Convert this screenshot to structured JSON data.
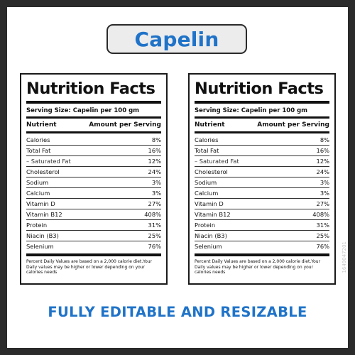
{
  "header": {
    "title": "Capelin"
  },
  "labels": [
    {
      "title": "Nutrition Facts",
      "serving_size": "Serving Size: Capelin per 100 gm",
      "col_nutrient": "Nutrient",
      "col_amount": "Amount per Serving",
      "rows": [
        {
          "name": "Calories",
          "value": "8%"
        },
        {
          "name": "Total Fat",
          "value": "16%"
        },
        {
          "name": "– Saturated Fat",
          "value": "12%"
        },
        {
          "name": "Cholesterol",
          "value": "24%"
        },
        {
          "name": "Sodium",
          "value": "3%"
        },
        {
          "name": "Calcium",
          "value": "3%"
        },
        {
          "name": "Vitamin D",
          "value": "27%"
        },
        {
          "name": "Vitamin B12",
          "value": "408%"
        },
        {
          "name": "Protein",
          "value": "31%"
        },
        {
          "name": "Niacin (B3)",
          "value": "25%"
        },
        {
          "name": "Selenium",
          "value": "76%"
        }
      ],
      "footnote": "Percent Daily Values are based on a 2,000 calorie diet.Your Daily values may be higher or lower depending on your calories needs"
    },
    {
      "title": "Nutrition Facts",
      "serving_size": "Serving Size: Capelin per 100 gm",
      "col_nutrient": "Nutrient",
      "col_amount": "Amount per Serving",
      "rows": [
        {
          "name": "Calories",
          "value": "8%"
        },
        {
          "name": "Total Fat",
          "value": "16%"
        },
        {
          "name": "– Saturated Fat",
          "value": "12%"
        },
        {
          "name": "Cholesterol",
          "value": "24%"
        },
        {
          "name": "Sodium",
          "value": "3%"
        },
        {
          "name": "Calcium",
          "value": "3%"
        },
        {
          "name": "Vitamin D",
          "value": "27%"
        },
        {
          "name": "Vitamin B12",
          "value": "408%"
        },
        {
          "name": "Protein",
          "value": "31%"
        },
        {
          "name": "Niacin (B3)",
          "value": "25%"
        },
        {
          "name": "Selenium",
          "value": "76%"
        }
      ],
      "footnote": "Percent Daily Values are based on a 2,000 calorie diet.Your Daily values may be higher or lower depending on your calories needs"
    }
  ],
  "tagline": "FULLY EDITABLE AND RESIZABLE",
  "stock_id": "1649047201",
  "colors": {
    "accent": "#1f73c8",
    "frame": "#2b2b2b",
    "pill": "#ececec"
  }
}
